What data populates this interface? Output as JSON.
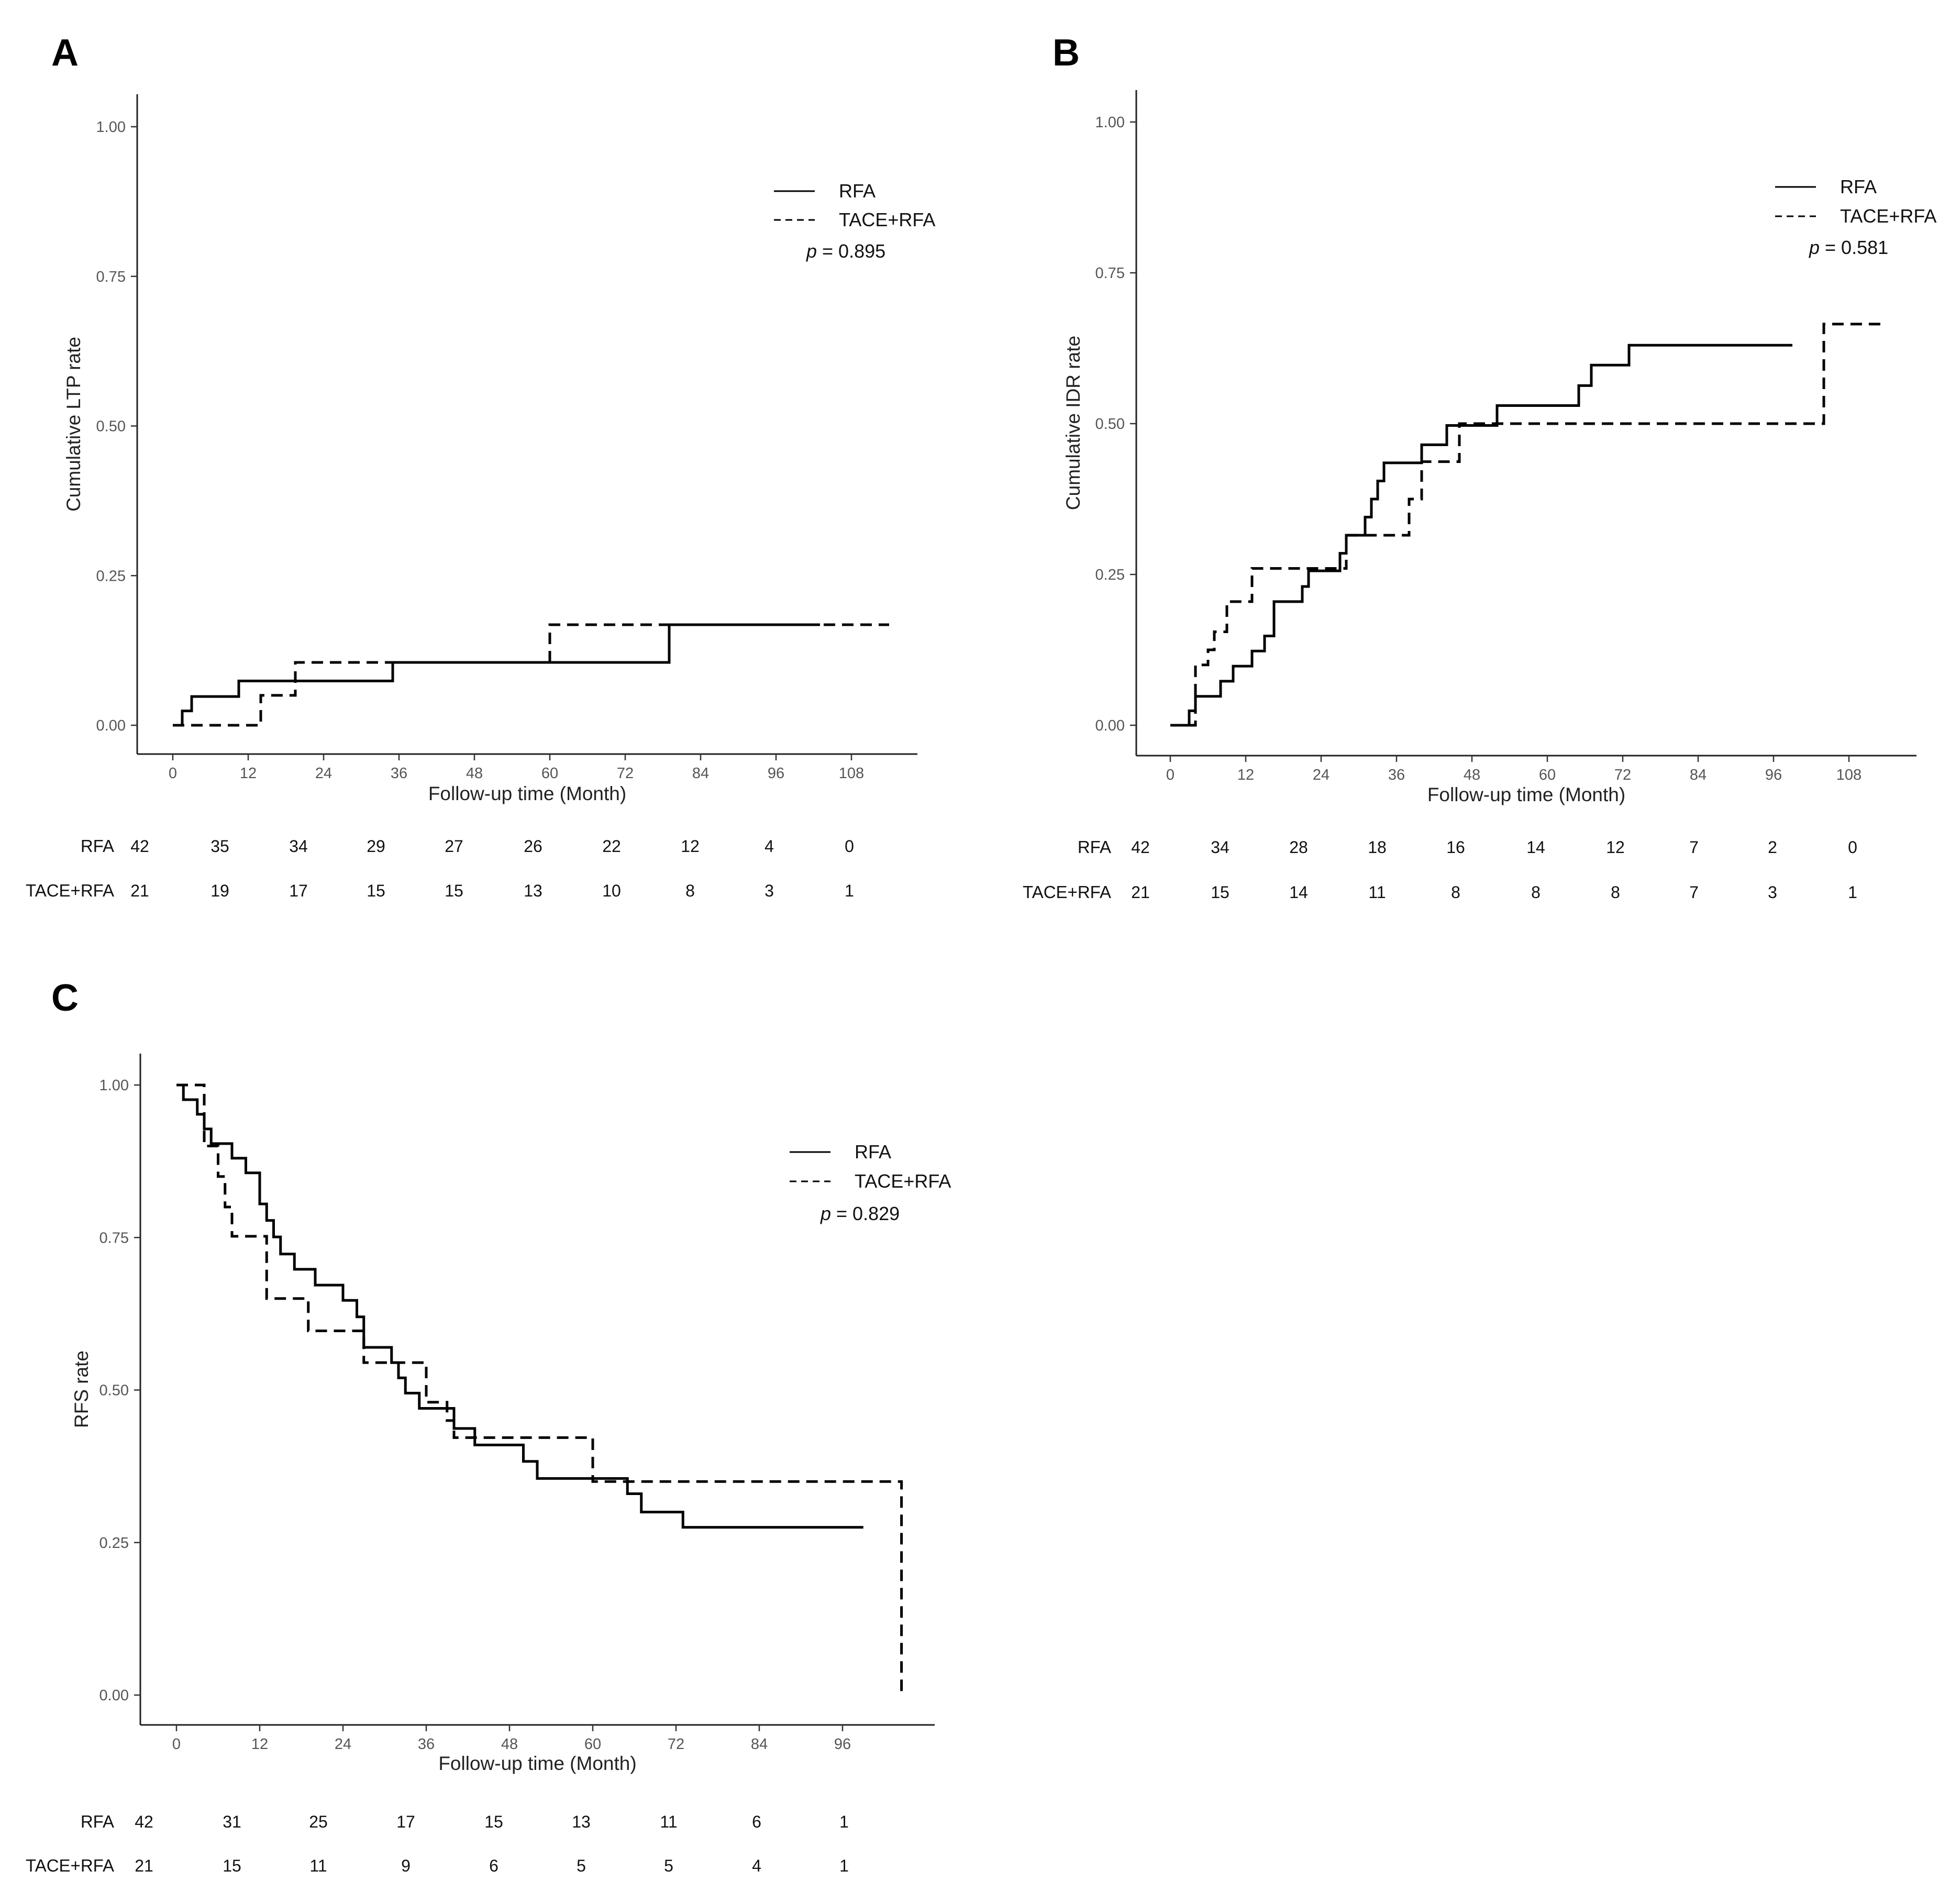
{
  "chart_data": [
    {
      "panel": "A",
      "type": "line",
      "step": true,
      "xlabel": "Follow-up time (Month)",
      "ylabel": "Cumulative LTP rate",
      "xlim": [
        -9,
        118
      ],
      "ylim": [
        0,
        1
      ],
      "x_ticks": [
        "0",
        "12",
        "24",
        "36",
        "48",
        "60",
        "72",
        "84",
        "96",
        "108"
      ],
      "y_ticks": [
        "0.00",
        "0.25",
        "0.50",
        "0.75",
        "1.00"
      ],
      "legend": {
        "entries": [
          "RFA",
          "TACE+RFA"
        ],
        "position": "top-right"
      },
      "p_label": "p",
      "p_value": " = 0.895",
      "series": [
        {
          "name": "RFA",
          "style": "solid",
          "x": [
            0,
            1.5,
            3,
            10.5,
            35,
            79,
            103
          ],
          "y": [
            0,
            0.024,
            0.048,
            0.074,
            0.105,
            0.168,
            0.168
          ]
        },
        {
          "name": "TACE+RFA",
          "style": "dashed",
          "x": [
            0,
            14,
            19.5,
            60,
            114
          ],
          "y": [
            0,
            0.05,
            0.105,
            0.168,
            0.168
          ]
        }
      ],
      "risk_table": [
        {
          "label": "RFA",
          "values": [
            "42",
            "35",
            "34",
            "29",
            "27",
            "26",
            "22",
            "12",
            "4",
            "0"
          ]
        },
        {
          "label": "TACE+RFA",
          "values": [
            "21",
            "19",
            "17",
            "15",
            "15",
            "13",
            "10",
            "8",
            "3",
            "1"
          ]
        }
      ]
    },
    {
      "panel": "B",
      "type": "line",
      "step": true,
      "xlabel": "Follow-up time (Month)",
      "ylabel": "Cumulative IDR rate",
      "xlim": [
        -5,
        118
      ],
      "ylim": [
        0,
        1
      ],
      "x_ticks": [
        "0",
        "12",
        "24",
        "36",
        "48",
        "60",
        "72",
        "84",
        "96",
        "108"
      ],
      "y_ticks": [
        "0.00",
        "0.25",
        "0.50",
        "0.75",
        "1.00"
      ],
      "legend": {
        "entries": [
          "RFA",
          "TACE+RFA"
        ],
        "position": "top-right"
      },
      "p_label": "p",
      "p_value": " = 0.581",
      "series": [
        {
          "name": "RFA",
          "style": "solid",
          "x": [
            0,
            3,
            4,
            8,
            10,
            13,
            15,
            16.5,
            21,
            22,
            24,
            27,
            28,
            31,
            32,
            33,
            34,
            35,
            40,
            44,
            52,
            65,
            67,
            73,
            99
          ],
          "y": [
            0,
            0.024,
            0.048,
            0.073,
            0.098,
            0.123,
            0.148,
            0.205,
            0.23,
            0.256,
            0.256,
            0.285,
            0.315,
            0.345,
            0.375,
            0.405,
            0.435,
            0.435,
            0.465,
            0.497,
            0.53,
            0.563,
            0.597,
            0.63,
            0.63
          ]
        },
        {
          "name": "TACE+RFA",
          "style": "dashed",
          "x": [
            0,
            4,
            6,
            7,
            9,
            13,
            28,
            38,
            40,
            46,
            104,
            113
          ],
          "y": [
            0,
            0.1,
            0.125,
            0.155,
            0.205,
            0.26,
            0.315,
            0.375,
            0.437,
            0.5,
            0.665,
            0.665
          ]
        }
      ],
      "risk_table": [
        {
          "label": "RFA",
          "values": [
            "42",
            "34",
            "28",
            "18",
            "16",
            "14",
            "12",
            "7",
            "2",
            "0"
          ]
        },
        {
          "label": "TACE+RFA",
          "values": [
            "21",
            "15",
            "14",
            "11",
            "8",
            "8",
            "8",
            "7",
            "3",
            "1"
          ]
        }
      ]
    },
    {
      "panel": "C",
      "type": "line",
      "step": true,
      "xlabel": "Follow-up time (Month)",
      "ylabel": "RFS rate",
      "xlim": [
        -5,
        109
      ],
      "ylim": [
        0,
        1
      ],
      "x_ticks": [
        "0",
        "12",
        "24",
        "36",
        "48",
        "60",
        "72",
        "84",
        "96"
      ],
      "y_ticks": [
        "0.00",
        "0.25",
        "0.50",
        "0.75",
        "1.00"
      ],
      "legend": {
        "entries": [
          "RFA",
          "TACE+RFA"
        ],
        "position": "top-right"
      },
      "p_label": "p",
      "p_value": " = 0.829",
      "series": [
        {
          "name": "RFA",
          "style": "solid",
          "x": [
            0,
            1,
            3,
            4,
            5,
            8,
            10,
            12,
            13,
            14,
            15,
            17,
            20,
            24,
            26,
            27,
            31,
            32,
            33,
            35,
            40,
            43,
            50,
            52,
            65,
            67,
            73,
            99
          ],
          "y": [
            1,
            0.976,
            0.952,
            0.928,
            0.904,
            0.88,
            0.856,
            0.805,
            0.778,
            0.751,
            0.723,
            0.698,
            0.672,
            0.647,
            0.62,
            0.57,
            0.545,
            0.52,
            0.495,
            0.47,
            0.437,
            0.41,
            0.383,
            0.355,
            0.33,
            0.3,
            0.275,
            0.275
          ]
        },
        {
          "name": "TACE+RFA",
          "style": "dashed",
          "x": [
            0,
            4,
            6,
            7,
            8,
            13,
            19,
            27,
            36,
            39,
            40,
            60,
            104,
            104.5
          ],
          "y": [
            1,
            0.9,
            0.85,
            0.8,
            0.752,
            0.65,
            0.597,
            0.545,
            0.48,
            0.45,
            0.422,
            0.35,
            0.35,
            0
          ]
        }
      ],
      "risk_table": [
        {
          "label": "RFA",
          "values": [
            "42",
            "31",
            "25",
            "17",
            "15",
            "13",
            "11",
            "6",
            "1"
          ]
        },
        {
          "label": "TACE+RFA",
          "values": [
            "21",
            "15",
            "11",
            "9",
            "6",
            "5",
            "5",
            "4",
            "1"
          ]
        }
      ]
    }
  ]
}
